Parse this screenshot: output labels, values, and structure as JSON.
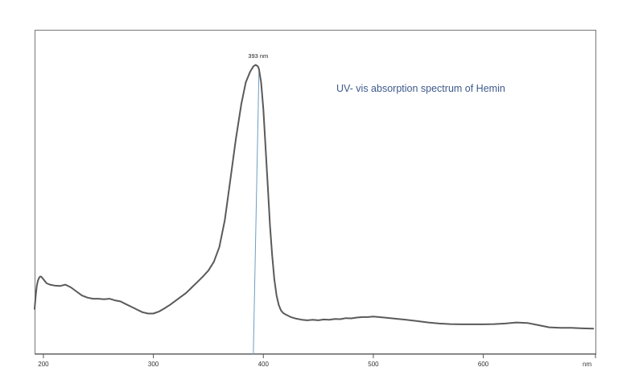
{
  "colors": {
    "spectrum": "#5a5a5a",
    "marker": "#6a9ec5",
    "title": "#3d5a8c"
  },
  "chart_data": {
    "type": "line",
    "title": "UV- vis absorption spectrum of Hemin",
    "xlabel": "",
    "ylabel": "",
    "x_unit_label": "nm",
    "xlim": [
      192,
      702
    ],
    "ylim": [
      0,
      1
    ],
    "x_ticks": [
      200,
      300,
      400,
      500,
      600
    ],
    "grid": false,
    "legend": "none",
    "annotations": [
      {
        "text": "393 nm",
        "x": 396
      }
    ],
    "series": [
      {
        "x": [
          192,
          193,
          194,
          195,
          196,
          197,
          198,
          200,
          203,
          206,
          210,
          215,
          220,
          225,
          230,
          235,
          240,
          245,
          250,
          255,
          260,
          265,
          270,
          275,
          280,
          285,
          290,
          295,
          300,
          305,
          310,
          315,
          320,
          325,
          330,
          335,
          340,
          345,
          350,
          355,
          360,
          365,
          370,
          375,
          380,
          384,
          388,
          391,
          393,
          395,
          396,
          398,
          400,
          402,
          404,
          406,
          408,
          410,
          412,
          414,
          416,
          418,
          420,
          425,
          430,
          435,
          440,
          445,
          450,
          455,
          460,
          465,
          470,
          475,
          480,
          485,
          490,
          495,
          500,
          505,
          510,
          520,
          530,
          540,
          550,
          560,
          570,
          580,
          590,
          600,
          610,
          620,
          630,
          640,
          650,
          660,
          670,
          680,
          690,
          700
        ],
        "y": [
          0.12,
          0.17,
          0.205,
          0.225,
          0.235,
          0.24,
          0.24,
          0.23,
          0.215,
          0.21,
          0.207,
          0.205,
          0.21,
          0.2,
          0.185,
          0.17,
          0.162,
          0.158,
          0.158,
          0.156,
          0.158,
          0.152,
          0.148,
          0.138,
          0.128,
          0.118,
          0.108,
          0.103,
          0.103,
          0.11,
          0.122,
          0.135,
          0.15,
          0.165,
          0.18,
          0.2,
          0.22,
          0.24,
          0.262,
          0.295,
          0.35,
          0.45,
          0.6,
          0.75,
          0.88,
          0.96,
          1.0,
          1.02,
          1.025,
          1.02,
          1.01,
          0.96,
          0.86,
          0.72,
          0.58,
          0.43,
          0.32,
          0.23,
          0.17,
          0.135,
          0.115,
          0.105,
          0.1,
          0.09,
          0.084,
          0.08,
          0.078,
          0.08,
          0.078,
          0.081,
          0.08,
          0.083,
          0.082,
          0.086,
          0.085,
          0.088,
          0.09,
          0.09,
          0.092,
          0.09,
          0.088,
          0.084,
          0.08,
          0.075,
          0.07,
          0.066,
          0.064,
          0.063,
          0.063,
          0.063,
          0.064,
          0.066,
          0.07,
          0.068,
          0.06,
          0.052,
          0.05,
          0.05,
          0.048,
          0.047
        ]
      }
    ]
  }
}
